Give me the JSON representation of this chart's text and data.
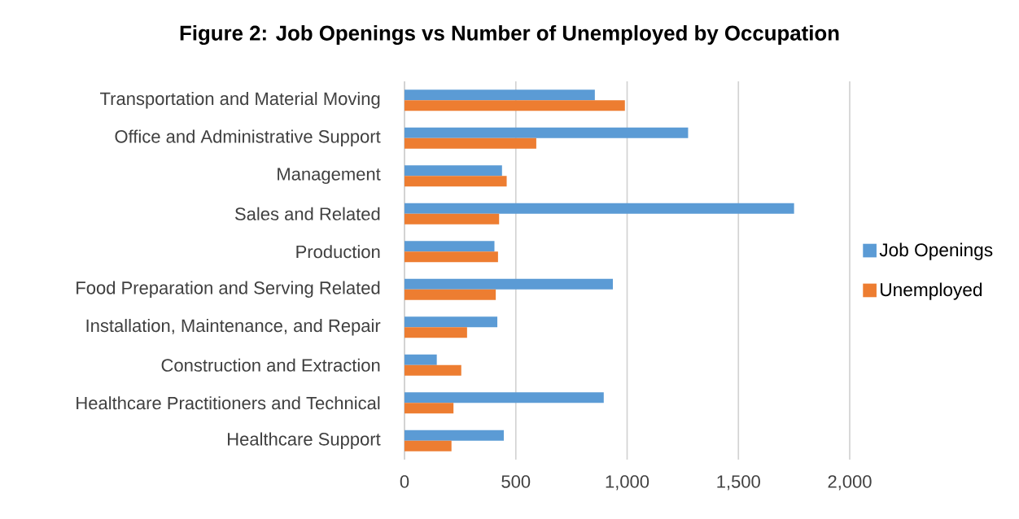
{
  "chart_data": {
    "type": "bar",
    "orientation": "horizontal",
    "title": "Figure 2: Job Openings vs Number of Unemployed by Occupation",
    "categories": [
      "Transportation and Material Moving",
      "Office and Administrative Support",
      "Management",
      "Sales and Related",
      "Production",
      "Food Preparation and Serving Related",
      "Installation, Maintenance, and Repair",
      "Construction and Extraction",
      "Healthcare Practitioners and Technical",
      "Healthcare Support"
    ],
    "series": [
      {
        "name": "Job Openings",
        "color": "#5b9bd5",
        "values": [
          855,
          1274,
          438,
          1750,
          404,
          936,
          417,
          145,
          895,
          446
        ]
      },
      {
        "name": "Unemployed",
        "color": "#ed7d31",
        "values": [
          990,
          592,
          459,
          425,
          420,
          410,
          281,
          255,
          220,
          211
        ]
      }
    ],
    "xlim": [
      0,
      2000
    ],
    "xticks": [
      0,
      {
        "value": 500,
        "label": "500"
      },
      {
        "value": 1000,
        "label": "1,000"
      },
      {
        "value": 1500,
        "label": "1,500"
      },
      {
        "value": 2000,
        "label": "2,000"
      }
    ],
    "grid": "x",
    "legend": "right"
  }
}
